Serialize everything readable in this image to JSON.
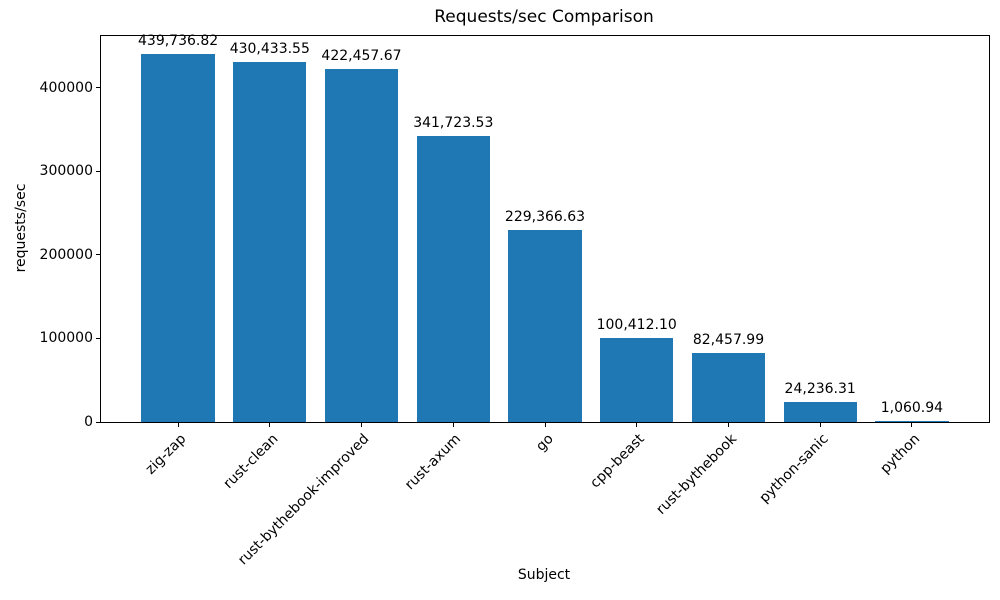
{
  "chart_data": {
    "type": "bar",
    "title": "Requests/sec Comparison",
    "xlabel": "Subject",
    "ylabel": "requests/sec",
    "categories": [
      "zig-zap",
      "rust-clean",
      "rust-bythebook-improved",
      "rust-axum",
      "go",
      "cpp-beast",
      "rust-bythebook",
      "python-sanic",
      "python"
    ],
    "values": [
      439736.82,
      430433.55,
      422457.67,
      341723.53,
      229366.63,
      100412.1,
      82457.99,
      24236.31,
      1060.94
    ],
    "value_labels": [
      "439,736.82",
      "430,433.55",
      "422,457.67",
      "341,723.53",
      "229,366.63",
      "100,412.10",
      "82,457.99",
      "24,236.31",
      "1,060.94"
    ],
    "yticks": [
      0,
      100000,
      200000,
      300000,
      400000
    ],
    "ytick_labels": [
      "0",
      "100000",
      "200000",
      "300000",
      "400000"
    ],
    "ylim": [
      0,
      461723.66
    ],
    "bar_color": "#1f77b4",
    "bar_width_fraction": 0.8,
    "x_margin_fraction": 0.05,
    "tick_rotation_deg": 45,
    "grid": false,
    "legend_position": "none"
  }
}
